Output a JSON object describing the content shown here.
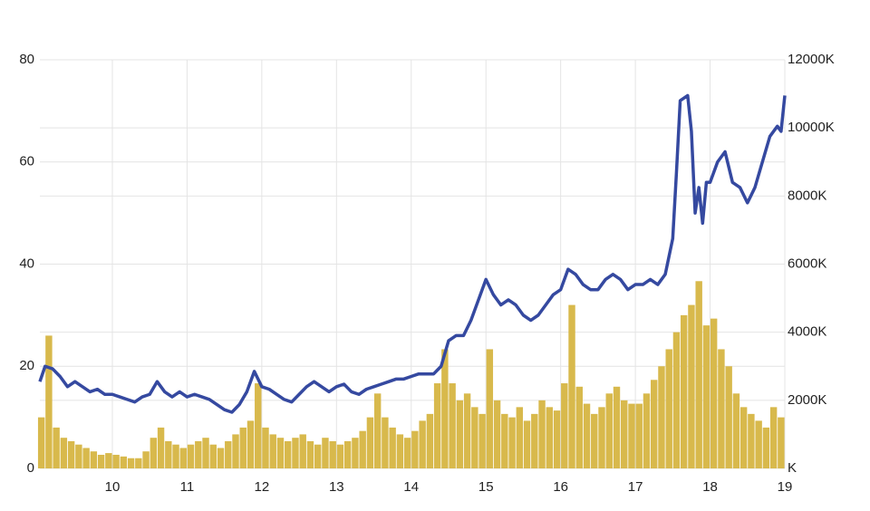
{
  "chart_data": {
    "type": "combo",
    "xlim": [
      9.03,
      19.0
    ],
    "xticks": [
      10,
      11,
      12,
      13,
      14,
      15,
      16,
      17,
      18,
      19
    ],
    "ylim": [
      0,
      80
    ],
    "yticks": [
      0,
      20,
      40,
      60,
      80
    ],
    "y2lim": [
      0,
      12000
    ],
    "y2ticks": [
      {
        "value": 0,
        "label": "K"
      },
      {
        "value": 2000,
        "label": "2000K"
      },
      {
        "value": 4000,
        "label": "4000K"
      },
      {
        "value": 6000,
        "label": "6000K"
      },
      {
        "value": 8000,
        "label": "8000K"
      },
      {
        "value": 10000,
        "label": "10000K"
      },
      {
        "value": 12000,
        "label": "12000K"
      }
    ],
    "grid": true,
    "series": [
      {
        "type": "bar",
        "axis": "y2",
        "color": "#d8b94c",
        "x": [
          9.05,
          9.15,
          9.25,
          9.35,
          9.45,
          9.55,
          9.65,
          9.75,
          9.85,
          9.95,
          10.05,
          10.15,
          10.25,
          10.35,
          10.45,
          10.55,
          10.65,
          10.75,
          10.85,
          10.95,
          11.05,
          11.15,
          11.25,
          11.35,
          11.45,
          11.55,
          11.65,
          11.75,
          11.85,
          11.95,
          12.05,
          12.15,
          12.25,
          12.35,
          12.45,
          12.55,
          12.65,
          12.75,
          12.85,
          12.95,
          13.05,
          13.15,
          13.25,
          13.35,
          13.45,
          13.55,
          13.65,
          13.75,
          13.85,
          13.95,
          14.05,
          14.15,
          14.25,
          14.35,
          14.45,
          14.55,
          14.65,
          14.75,
          14.85,
          14.95,
          15.05,
          15.15,
          15.25,
          15.35,
          15.45,
          15.55,
          15.65,
          15.75,
          15.85,
          15.95,
          16.05,
          16.15,
          16.25,
          16.35,
          16.45,
          16.55,
          16.65,
          16.75,
          16.85,
          16.95,
          17.05,
          17.15,
          17.25,
          17.35,
          17.45,
          17.55,
          17.65,
          17.75,
          17.85,
          17.95,
          18.05,
          18.15,
          18.25,
          18.35,
          18.45,
          18.55,
          18.65,
          18.75,
          18.85,
          18.95
        ],
        "values": [
          1500,
          3900,
          1200,
          900,
          800,
          700,
          600,
          500,
          400,
          450,
          400,
          350,
          300,
          300,
          500,
          900,
          1200,
          800,
          700,
          600,
          700,
          800,
          900,
          700,
          600,
          800,
          1000,
          1200,
          1400,
          2500,
          1200,
          1000,
          900,
          800,
          900,
          1000,
          800,
          700,
          900,
          800,
          700,
          800,
          900,
          1100,
          1500,
          2200,
          1500,
          1200,
          1000,
          900,
          1100,
          1400,
          1600,
          2500,
          3500,
          2500,
          2000,
          2200,
          1800,
          1600,
          3500,
          2000,
          1600,
          1500,
          1800,
          1400,
          1600,
          2000,
          1800,
          1700,
          2500,
          4800,
          2400,
          1900,
          1600,
          1800,
          2200,
          2400,
          2000,
          1900,
          1900,
          2200,
          2600,
          3000,
          3500,
          4000,
          4500,
          4800,
          5500,
          4200,
          4400,
          3500,
          3000,
          2200,
          1800,
          1600,
          1400,
          1200,
          1800,
          1500
        ]
      },
      {
        "type": "line",
        "color": "#3549a0",
        "x": [
          9.03,
          9.1,
          9.2,
          9.3,
          9.4,
          9.5,
          9.6,
          9.7,
          9.8,
          9.9,
          10.0,
          10.1,
          10.2,
          10.3,
          10.4,
          10.5,
          10.6,
          10.7,
          10.8,
          10.9,
          11.0,
          11.1,
          11.2,
          11.3,
          11.4,
          11.5,
          11.6,
          11.7,
          11.8,
          11.9,
          12.0,
          12.1,
          12.2,
          12.3,
          12.4,
          12.5,
          12.6,
          12.7,
          12.8,
          12.9,
          13.0,
          13.1,
          13.2,
          13.3,
          13.4,
          13.5,
          13.6,
          13.7,
          13.8,
          13.9,
          14.0,
          14.1,
          14.2,
          14.3,
          14.4,
          14.5,
          14.6,
          14.7,
          14.8,
          14.9,
          15.0,
          15.1,
          15.2,
          15.3,
          15.4,
          15.5,
          15.6,
          15.7,
          15.8,
          15.9,
          16.0,
          16.1,
          16.2,
          16.3,
          16.4,
          16.5,
          16.6,
          16.7,
          16.8,
          16.9,
          17.0,
          17.1,
          17.2,
          17.3,
          17.4,
          17.5,
          17.55,
          17.6,
          17.7,
          17.75,
          17.8,
          17.85,
          17.9,
          17.95,
          18.0,
          18.1,
          18.2,
          18.3,
          18.4,
          18.5,
          18.6,
          18.7,
          18.8,
          18.9,
          18.95,
          19.0
        ],
        "values": [
          17,
          20,
          19.5,
          18,
          16,
          17,
          16,
          15,
          15.5,
          14.5,
          14.5,
          14,
          13.5,
          13,
          14,
          14.5,
          17,
          15,
          14,
          15,
          14,
          14.5,
          14,
          13.5,
          12.5,
          11.5,
          11,
          12.5,
          15,
          19,
          16,
          15.5,
          14.5,
          13.5,
          13,
          14.5,
          16,
          17,
          16,
          15,
          16,
          16.5,
          15,
          14.5,
          15.5,
          16,
          16.5,
          17,
          17.5,
          17.5,
          18,
          18.5,
          18.5,
          18.5,
          20,
          25,
          26,
          26,
          29,
          33,
          37,
          34,
          32,
          33,
          32,
          30,
          29,
          30,
          32,
          34,
          35,
          39,
          38,
          36,
          35,
          35,
          37,
          38,
          37,
          35,
          36,
          36,
          37,
          36,
          38,
          45,
          58,
          72,
          73,
          66,
          50,
          55,
          48,
          56,
          56,
          60,
          62,
          56,
          55,
          52,
          55,
          60,
          65,
          67,
          66,
          73
        ]
      }
    ]
  }
}
